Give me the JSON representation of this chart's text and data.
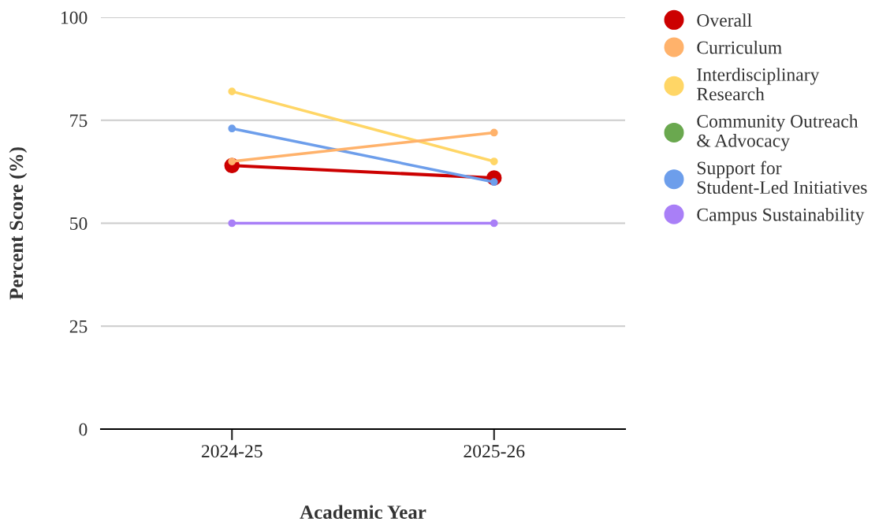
{
  "chart_data": {
    "type": "line",
    "xlabel": "Academic Year",
    "ylabel": "Percent Score (%)",
    "categories": [
      "2024-25",
      "2025-26"
    ],
    "series": [
      {
        "name": "Overall",
        "color": "#cc0000",
        "values": [
          64,
          61
        ]
      },
      {
        "name": "Curriculum",
        "color": "#ffb26b",
        "values": [
          65,
          72
        ]
      },
      {
        "name": "Interdisciplinary\nResearch",
        "color": "#ffd666",
        "values": [
          82,
          65
        ]
      },
      {
        "name": "Community Outreach\n& Advocacy",
        "color": "#6aa84f",
        "values": [
          null,
          null
        ]
      },
      {
        "name": "Support for\nStudent-Led Initiatives",
        "color": "#6d9eeb",
        "values": [
          73,
          60
        ]
      },
      {
        "name": "Campus Sustainability",
        "color": "#a97ff7",
        "values": [
          50,
          50
        ]
      }
    ],
    "ylim": [
      0,
      100
    ],
    "yticks": [
      0,
      25,
      50,
      75,
      100
    ],
    "grid": "y",
    "legend": "right",
    "marker": "circle",
    "line_style": "solid"
  }
}
